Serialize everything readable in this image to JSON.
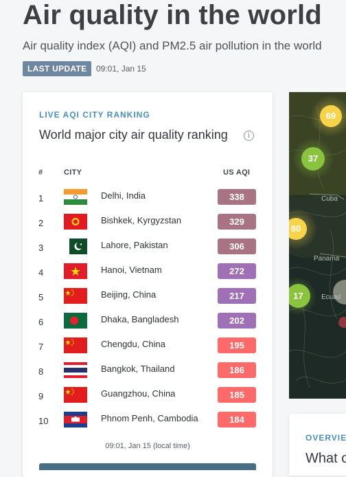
{
  "header": {
    "title": "Air quality in the world",
    "subtitle": "Air quality index (AQI) and PM2.5 air pollution in the world",
    "badge": "LAST UPDATE",
    "update_time": "09:01, Jan 15"
  },
  "ranking": {
    "kicker": "LIVE AQI CITY RANKING",
    "heading": "World major city air quality ranking",
    "info_glyph": "i",
    "columns": {
      "rank": "#",
      "city": "CITY",
      "aqi": "US AQI"
    },
    "rows": [
      {
        "rank": "1",
        "city": "Delhi, India",
        "aqi": "338",
        "flag": "india-flag",
        "color": "#a87383"
      },
      {
        "rank": "2",
        "city": "Bishkek, Kyrgyzstan",
        "aqi": "329",
        "flag": "kyrgyzstan-flag",
        "color": "#a87383"
      },
      {
        "rank": "3",
        "city": "Lahore, Pakistan",
        "aqi": "306",
        "flag": "pakistan-flag",
        "color": "#a87383"
      },
      {
        "rank": "4",
        "city": "Hanoi, Vietnam",
        "aqi": "272",
        "flag": "vietnam-flag",
        "color": "#a070b6"
      },
      {
        "rank": "5",
        "city": "Beijing, China",
        "aqi": "217",
        "flag": "china-flag",
        "color": "#a070b6"
      },
      {
        "rank": "6",
        "city": "Dhaka, Bangladesh",
        "aqi": "202",
        "flag": "bangladesh-flag",
        "color": "#a070b6"
      },
      {
        "rank": "7",
        "city": "Chengdu, China",
        "aqi": "195",
        "flag": "china-flag",
        "color": "#fe6a69"
      },
      {
        "rank": "8",
        "city": "Bangkok, Thailand",
        "aqi": "186",
        "flag": "thailand-flag",
        "color": "#fe6a69"
      },
      {
        "rank": "9",
        "city": "Guangzhou, China",
        "aqi": "185",
        "flag": "china-flag",
        "color": "#fe6a69"
      },
      {
        "rank": "10",
        "city": "Phnom Penh, Cambodia",
        "aqi": "184",
        "flag": "cambodia-flag",
        "color": "#fe6a69"
      }
    ],
    "footer_time": "09:01, Jan 15 (local time)"
  },
  "map": {
    "markers": [
      {
        "value": "69",
        "color": "#f6d34a"
      },
      {
        "value": "37",
        "color": "#8ac43f"
      },
      {
        "value": "80",
        "color": "#f6d34a"
      },
      {
        "value": "17",
        "color": "#8ac43f"
      }
    ],
    "labels": [
      "Cuba",
      "Panama",
      "Ecuad"
    ]
  },
  "overview": {
    "kicker": "OVERVIE",
    "heading": "What c"
  }
}
